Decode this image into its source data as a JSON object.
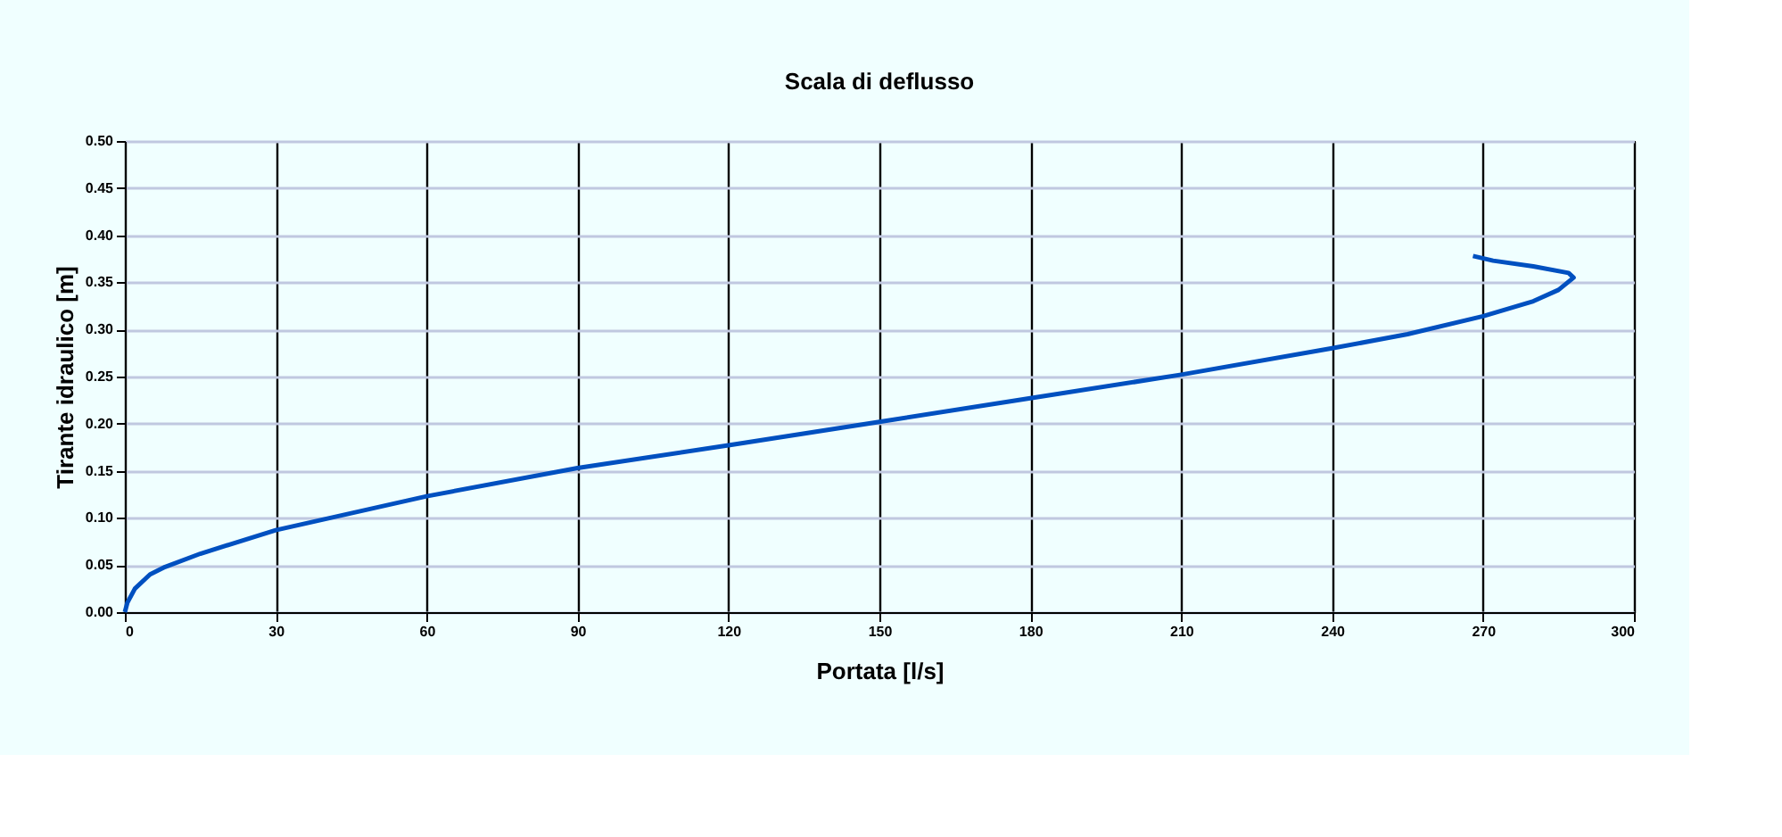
{
  "chart_data": {
    "type": "line",
    "title": "Scala di deflusso",
    "xlabel": "Portata [l/s]",
    "ylabel": "Tirante idraulico [m]",
    "x": [
      0,
      0.5,
      2,
      5,
      8,
      15,
      30,
      45,
      60,
      90,
      120,
      150,
      180,
      210,
      240,
      255,
      270,
      280,
      285,
      288,
      287,
      280,
      272,
      268
    ],
    "series": [
      {
        "color": "#0050c0",
        "values": [
          0,
          0.01,
          0.025,
          0.04,
          0.048,
          0.062,
          0.087,
          0.105,
          0.123,
          0.153,
          0.177,
          0.202,
          0.227,
          0.252,
          0.28,
          0.295,
          0.314,
          0.33,
          0.342,
          0.355,
          0.36,
          0.367,
          0.373,
          0.378
        ]
      }
    ],
    "xlim": [
      0,
      300
    ],
    "xticks": [
      0,
      30,
      60,
      90,
      120,
      150,
      180,
      210,
      240,
      270,
      300
    ],
    "ylim": [
      0,
      0.5
    ],
    "yticks": [
      {
        "value": 0,
        "label": "0.00"
      },
      {
        "value": 0.05,
        "label": "0.05"
      },
      {
        "value": 0.1,
        "label": "0.10"
      },
      {
        "value": 0.15,
        "label": "0.15"
      },
      {
        "value": 0.2,
        "label": "0.20"
      },
      {
        "value": 0.25,
        "label": "0.25"
      },
      {
        "value": 0.3,
        "label": "0.30"
      },
      {
        "value": 0.35,
        "label": "0.35"
      },
      {
        "value": 0.4,
        "label": "0.40"
      },
      {
        "value": 0.45,
        "label": "0.45"
      },
      {
        "value": 0.5,
        "label": "0.50"
      }
    ],
    "grid": true,
    "marker": "none",
    "line_style": "solid"
  }
}
